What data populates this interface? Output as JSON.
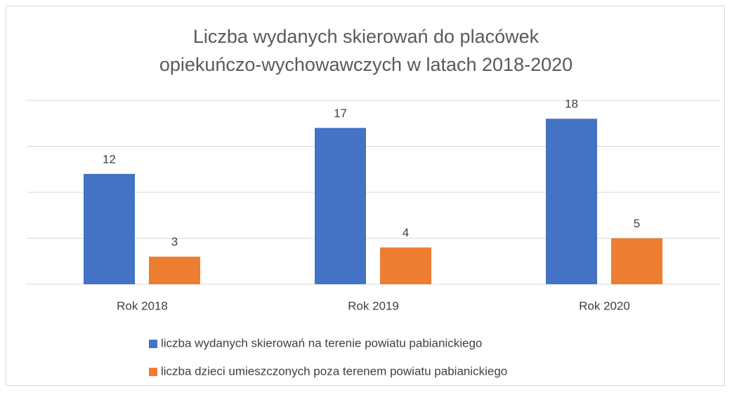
{
  "chart_data": {
    "type": "bar",
    "title": "Liczba wydanych skierowań do placówek\nopiekuńczo-wychowawczych w latach 2018-2020",
    "categories": [
      "Rok 2018",
      "Rok 2019",
      "Rok 2020"
    ],
    "series": [
      {
        "name": "liczba wydanych skierowań na terenie powiatu pabianickiego",
        "color": "#4472c4",
        "values": [
          12,
          17,
          18
        ]
      },
      {
        "name": "liczba dzieci umieszczonych poza terenem powiatu pabianickiego",
        "color": "#ed7d31",
        "values": [
          3,
          4,
          5
        ]
      }
    ],
    "ylim": [
      0,
      20
    ],
    "yticks": [
      0,
      5,
      10,
      15,
      20
    ],
    "grid": true,
    "legend": "bottom"
  }
}
